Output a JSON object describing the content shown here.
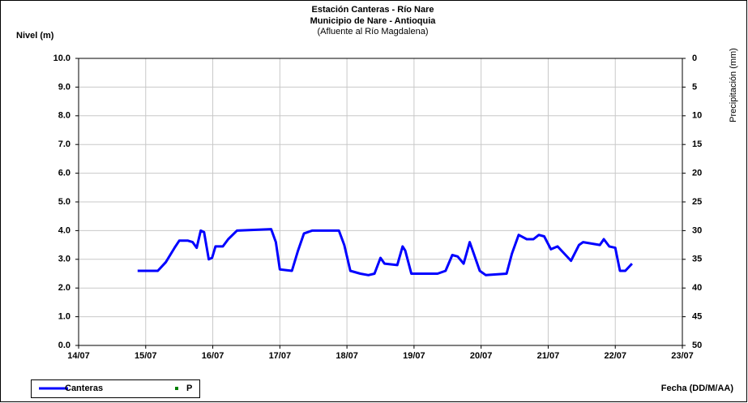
{
  "chart_data": {
    "type": "line",
    "title": [
      "Estación Canteras - Río Nare",
      "Municipio de Nare - Antioquia",
      "(Afluente al Río Magdalena)"
    ],
    "y_label": "Nivel (m)",
    "y2_label": "Precipitación (mm)",
    "x_label": "Fecha (DD/M/AA)",
    "xlim": [
      14,
      23
    ],
    "xticks": [
      {
        "value": 14,
        "label": "14/07"
      },
      {
        "value": 15,
        "label": "15/07"
      },
      {
        "value": 16,
        "label": "16/07"
      },
      {
        "value": 17,
        "label": "17/07"
      },
      {
        "value": 18,
        "label": "18/07"
      },
      {
        "value": 19,
        "label": "19/07"
      },
      {
        "value": 20,
        "label": "20/07"
      },
      {
        "value": 21,
        "label": "21/07"
      },
      {
        "value": 22,
        "label": "22/07"
      },
      {
        "value": 23,
        "label": "23/07"
      }
    ],
    "ylim": [
      0,
      10
    ],
    "yticks": [
      {
        "value": 0,
        "label": "0.0"
      },
      {
        "value": 1,
        "label": "1.0"
      },
      {
        "value": 2,
        "label": "2.0"
      },
      {
        "value": 3,
        "label": "3.0"
      },
      {
        "value": 4,
        "label": "4.0"
      },
      {
        "value": 5,
        "label": "5.0"
      },
      {
        "value": 6,
        "label": "6.0"
      },
      {
        "value": 7,
        "label": "7.0"
      },
      {
        "value": 8,
        "label": "8.0"
      },
      {
        "value": 9,
        "label": "9.0"
      },
      {
        "value": 10,
        "label": "10.0"
      }
    ],
    "y2lim": [
      50,
      0
    ],
    "y2ticks": [
      0,
      5,
      10,
      15,
      20,
      25,
      30,
      35,
      40,
      45,
      50
    ],
    "grid": true,
    "legend": "bottom-left",
    "series": [
      {
        "name": "Canteras",
        "color": "#0000ff",
        "x": [
          14.88,
          15.18,
          15.3,
          15.43,
          15.5,
          15.63,
          15.7,
          15.76,
          15.82,
          15.87,
          15.94,
          15.99,
          16.04,
          16.15,
          16.23,
          16.36,
          16.87,
          16.94,
          17.0,
          17.18,
          17.27,
          17.36,
          17.48,
          17.88,
          17.96,
          18.05,
          18.2,
          18.32,
          18.41,
          18.5,
          18.56,
          18.75,
          18.83,
          18.87,
          18.96,
          19.35,
          19.47,
          19.57,
          19.65,
          19.74,
          19.83,
          19.89,
          19.98,
          20.07,
          20.38,
          20.46,
          20.56,
          20.68,
          20.78,
          20.86,
          20.94,
          21.04,
          21.14,
          21.34,
          21.46,
          21.52,
          21.77,
          21.83,
          21.91,
          22.0,
          22.07,
          22.15,
          22.25
        ],
        "values": [
          2.6,
          2.6,
          2.9,
          3.4,
          3.65,
          3.65,
          3.6,
          3.4,
          4.0,
          3.95,
          3.0,
          3.05,
          3.45,
          3.45,
          3.7,
          4.0,
          4.05,
          3.6,
          2.65,
          2.6,
          3.3,
          3.9,
          4.0,
          4.0,
          3.5,
          2.6,
          2.5,
          2.45,
          2.5,
          3.05,
          2.85,
          2.8,
          3.45,
          3.3,
          2.5,
          2.5,
          2.6,
          3.15,
          3.1,
          2.85,
          3.6,
          3.2,
          2.6,
          2.45,
          2.5,
          3.2,
          3.85,
          3.7,
          3.7,
          3.85,
          3.8,
          3.35,
          3.45,
          2.95,
          3.5,
          3.6,
          3.5,
          3.7,
          3.45,
          3.4,
          2.6,
          2.6,
          2.85
        ]
      },
      {
        "name": "P",
        "color": "#008000",
        "axis": "y2",
        "x": [],
        "values": []
      }
    ]
  }
}
